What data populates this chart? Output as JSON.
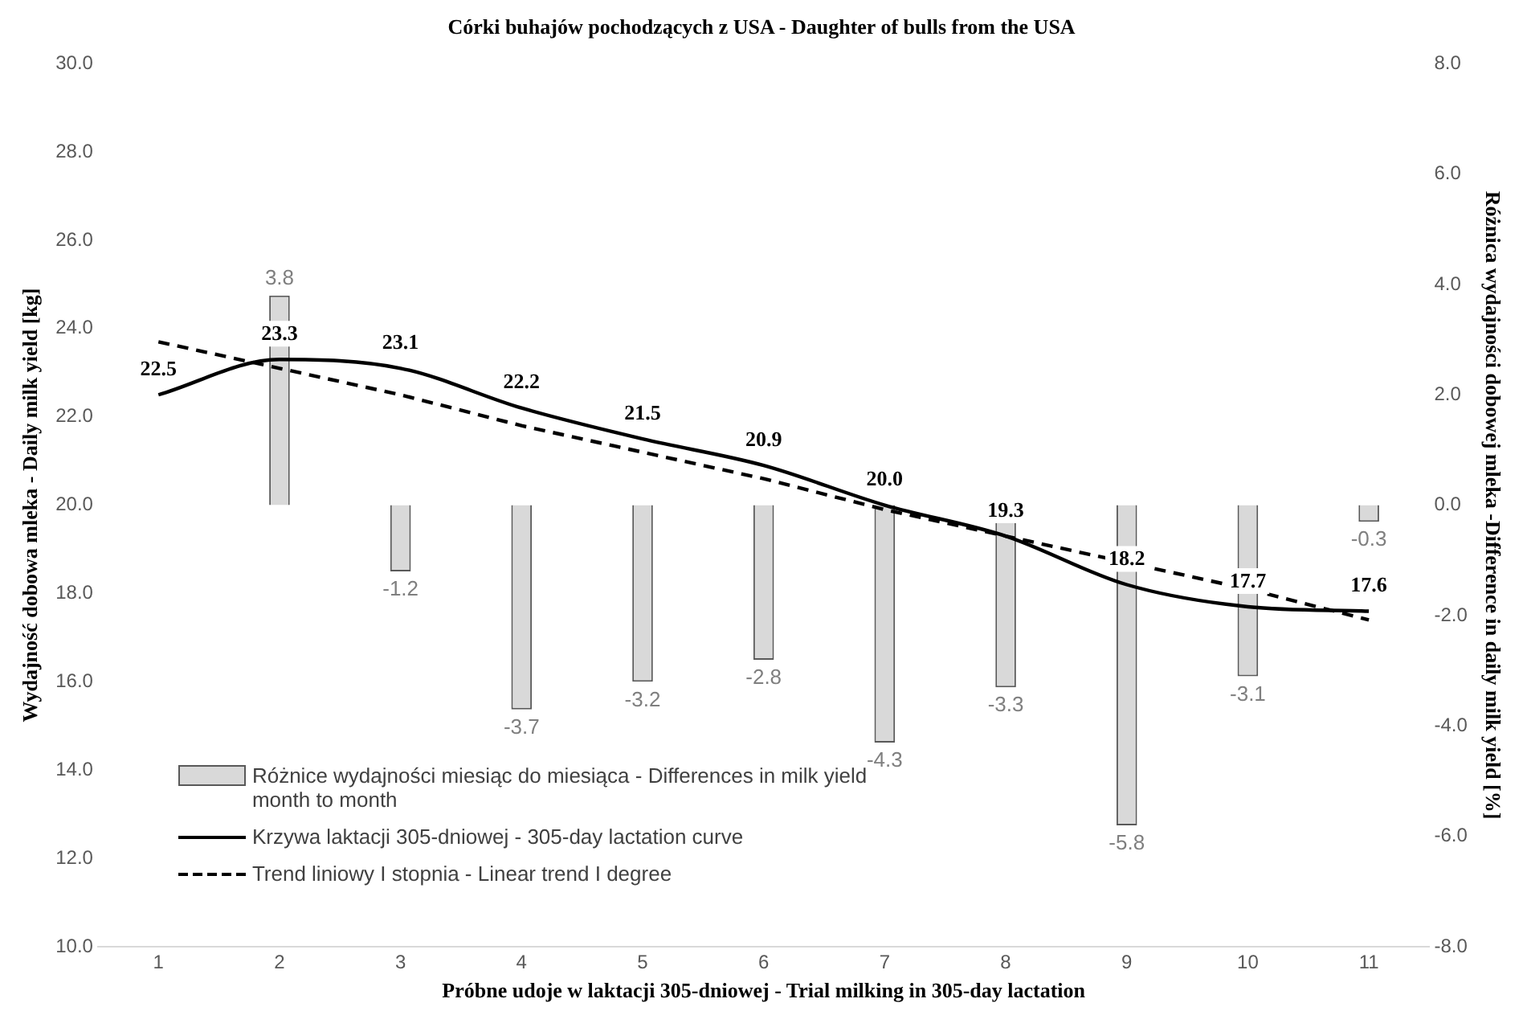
{
  "chart_data": {
    "type": "line",
    "title": "Córki buhajów pochodzących z USA - Daughter of bulls from the USA",
    "xlabel": "Próbne udoje w laktacji 305-dniowej - Trial milking in 305-day lactation",
    "ylabel": "Wydajność dobowa mleka - Daily milk yield [kg]",
    "y2label": "Różnica wydajności dobowej mleka -Difference in daily milk yield [%]",
    "categories": [
      "1",
      "2",
      "3",
      "4",
      "5",
      "6",
      "7",
      "8",
      "9",
      "10",
      "11"
    ],
    "series": [
      {
        "name": "Różnice wydajności miesiąc do miesiąca - Differences in milk yield month to month",
        "type": "bar",
        "axis": "y2",
        "color": "#d9d9d9",
        "values": [
          null,
          3.8,
          -1.2,
          -3.7,
          -3.2,
          -2.8,
          -4.3,
          -3.3,
          -5.8,
          -3.1,
          -0.3
        ],
        "value_labels": [
          null,
          "3.8",
          "-1.2",
          "-3.7",
          "-3.2",
          "-2.8",
          "-4.3",
          "-3.3",
          "-5.8",
          "-3.1",
          "-0.3"
        ]
      },
      {
        "name": "Krzywa laktacji 305-dniowej - 305-day lactation curve",
        "color": "#000000",
        "line_style": "solid",
        "values": [
          22.5,
          23.3,
          23.1,
          22.2,
          21.5,
          20.9,
          20.0,
          19.3,
          18.2,
          17.7,
          17.6
        ],
        "value_labels": [
          "22.5",
          "23.3",
          "23.1",
          "22.2",
          "21.5",
          "20.9",
          "20.0",
          "19.3",
          "18.2",
          "17.7",
          "17.6"
        ]
      },
      {
        "name": "Trend liniowy I stopnia - Linear trend I degree",
        "color": "#000000",
        "line_style": "dashed",
        "values": [
          23.7,
          23.1,
          22.5,
          21.8,
          21.2,
          20.6,
          19.9,
          19.3,
          18.7,
          18.1,
          17.4
        ]
      }
    ],
    "ylim": [
      10,
      30
    ],
    "yticks": [
      {
        "value": 10,
        "label": "10.0"
      },
      {
        "value": 12,
        "label": "12.0"
      },
      {
        "value": 14,
        "label": "14.0"
      },
      {
        "value": 16,
        "label": "16.0"
      },
      {
        "value": 18,
        "label": "18.0"
      },
      {
        "value": 20,
        "label": "20.0"
      },
      {
        "value": 22,
        "label": "22.0"
      },
      {
        "value": 24,
        "label": "24.0"
      },
      {
        "value": 26,
        "label": "26.0"
      },
      {
        "value": 28,
        "label": "28.0"
      },
      {
        "value": 30,
        "label": "30.0"
      }
    ],
    "y2lim": [
      -8,
      8
    ],
    "y2ticks": [
      {
        "value": -8,
        "label": "-8.0"
      },
      {
        "value": -6,
        "label": "-6.0"
      },
      {
        "value": -4,
        "label": "-4.0"
      },
      {
        "value": -2,
        "label": "-2.0"
      },
      {
        "value": 0,
        "label": "0.0"
      },
      {
        "value": 2,
        "label": "2.0"
      },
      {
        "value": 4,
        "label": "4.0"
      },
      {
        "value": 6,
        "label": "6.0"
      },
      {
        "value": 8,
        "label": "8.0"
      }
    ],
    "legend": "bottom left",
    "marker": "none"
  }
}
